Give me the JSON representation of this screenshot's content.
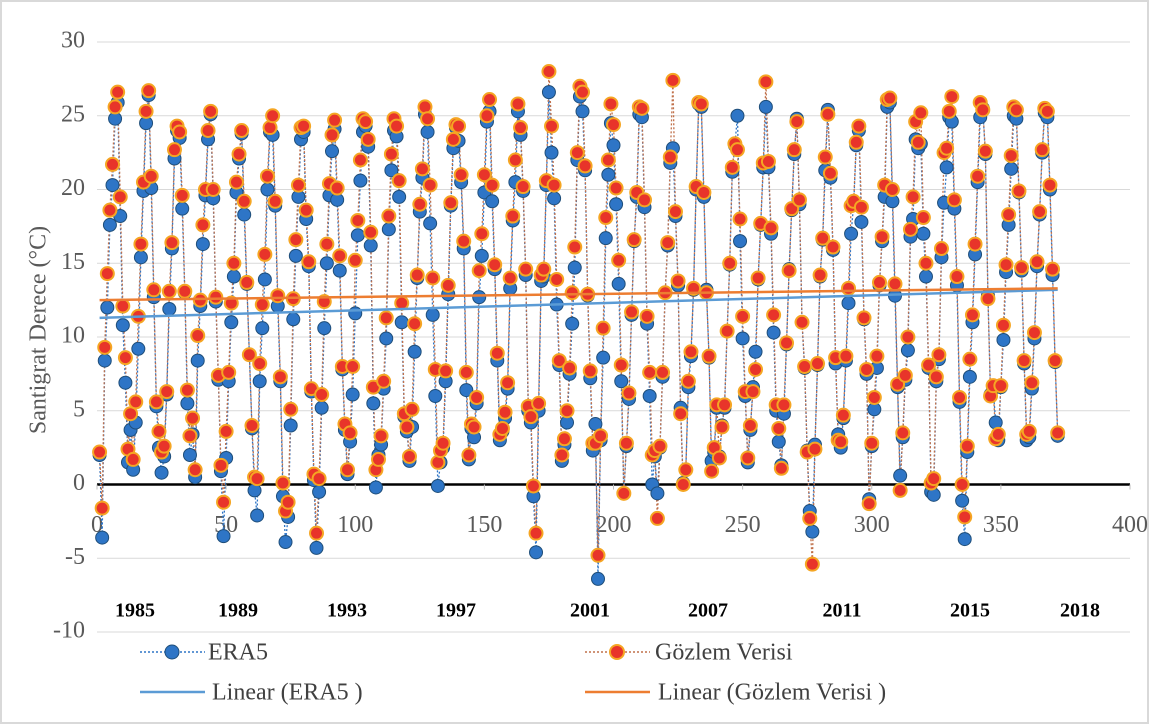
{
  "chart_data": {
    "type": "scatter",
    "y_label": "Santigrat Derece (°C)",
    "xlim": [
      0,
      400
    ],
    "xticks": [
      0,
      50,
      100,
      150,
      200,
      250,
      300,
      350,
      400
    ],
    "ylim": [
      -10,
      30
    ],
    "yticks": [
      -10,
      -5,
      0,
      5,
      10,
      15,
      20,
      25,
      30
    ],
    "grid": true,
    "annotations": [
      "1985",
      "1989",
      "1993",
      "1997",
      "2001",
      "2007",
      "2011",
      "2015",
      "2018"
    ],
    "x": [
      1,
      2,
      3,
      4,
      5,
      6,
      7,
      8,
      9,
      10,
      11,
      12,
      13,
      14,
      15,
      16,
      17,
      18,
      19,
      20,
      21,
      22,
      23,
      24,
      25,
      26,
      27,
      28,
      29,
      30,
      31,
      32,
      33,
      34,
      35,
      36,
      37,
      38,
      39,
      40,
      41,
      42,
      43,
      44,
      45,
      46,
      47,
      48,
      49,
      50,
      51,
      52,
      53,
      54,
      55,
      56,
      57,
      58,
      59,
      60,
      61,
      62,
      63,
      64,
      65,
      66,
      67,
      68,
      69,
      70,
      71,
      72,
      73,
      74,
      75,
      76,
      77,
      78,
      79,
      80,
      81,
      82,
      83,
      84,
      85,
      86,
      87,
      88,
      89,
      90,
      91,
      92,
      93,
      94,
      95,
      96,
      97,
      98,
      99,
      100,
      101,
      102,
      103,
      104,
      105,
      106,
      107,
      108,
      109,
      110,
      111,
      112,
      113,
      114,
      115,
      116,
      117,
      118,
      119,
      120,
      121,
      122,
      123,
      124,
      125,
      126,
      127,
      128,
      129,
      130,
      131,
      132,
      133,
      134,
      135,
      136,
      137,
      138,
      139,
      140,
      141,
      142,
      143,
      144,
      145,
      146,
      147,
      148,
      149,
      150,
      151,
      152,
      153,
      154,
      155,
      156,
      157,
      158,
      159,
      160,
      161,
      162,
      163,
      164,
      165,
      166,
      167,
      168,
      169,
      170,
      171,
      172,
      173,
      174,
      175,
      176,
      177,
      178,
      179,
      180,
      181,
      182,
      183,
      184,
      185,
      186,
      187,
      188,
      189,
      190,
      191,
      192,
      193,
      194,
      195,
      196,
      197,
      198,
      199,
      200,
      201,
      202,
      203,
      204,
      205,
      206,
      207,
      208,
      209,
      210,
      211,
      212,
      213,
      214,
      215,
      216,
      217,
      218,
      219,
      220,
      221,
      222,
      223,
      224,
      225,
      226,
      227,
      228,
      229,
      230,
      231,
      232,
      233,
      234,
      235,
      236,
      237,
      238,
      239,
      240,
      241,
      242,
      243,
      244,
      245,
      246,
      247,
      248,
      249,
      250,
      251,
      252,
      253,
      254,
      255,
      256,
      257,
      258,
      259,
      260,
      261,
      262,
      263,
      264,
      265,
      266,
      267,
      268,
      269,
      270,
      271,
      272,
      273,
      274,
      275,
      276,
      277,
      278,
      279,
      280,
      281,
      282,
      283,
      284,
      285,
      286,
      287,
      288,
      289,
      290,
      291,
      292,
      293,
      294,
      295,
      296,
      297,
      298,
      299,
      300,
      301,
      302,
      303,
      304,
      305,
      306,
      307,
      308,
      309,
      310,
      311,
      312,
      313,
      314,
      315,
      316,
      317,
      318,
      319,
      320,
      321,
      322,
      323,
      324,
      325,
      326,
      327,
      328,
      329,
      330,
      331,
      332,
      333,
      334,
      335,
      336,
      337,
      338,
      339,
      340,
      341,
      342,
      343,
      344,
      345,
      346,
      347,
      348,
      349,
      350,
      351,
      352,
      353,
      354,
      355,
      356,
      357,
      358,
      359,
      360,
      361,
      362,
      363,
      364,
      365,
      366,
      367,
      368,
      369,
      370,
      371,
      372
    ],
    "series": [
      {
        "name": "ERA5",
        "color": "#2e75c6",
        "values": [
          2.0,
          -3.6,
          8.4,
          12.0,
          17.6,
          20.3,
          24.8,
          25.9,
          18.2,
          10.8,
          6.9,
          1.5,
          3.7,
          1.0,
          4.2,
          9.2,
          15.4,
          19.9,
          24.5,
          26.4,
          20.1,
          12.7,
          5.3,
          2.5,
          0.8,
          1.9,
          6.1,
          11.9,
          16.0,
          22.1,
          24.0,
          23.5,
          18.7,
          13.0,
          5.5,
          2.0,
          3.4,
          0.5,
          8.4,
          12.1,
          16.3,
          19.6,
          23.4,
          25.1,
          19.4,
          12.4,
          7.1,
          0.9,
          -3.5,
          1.8,
          7.0,
          11.0,
          14.1,
          19.8,
          22.1,
          23.8,
          18.3,
          13.6,
          8.8,
          3.8,
          -0.4,
          -2.1,
          7.0,
          10.6,
          13.9,
          20.0,
          23.9,
          23.7,
          18.9,
          12.1,
          7.0,
          -0.8,
          -3.9,
          -2.2,
          4.0,
          11.2,
          15.5,
          19.5,
          23.4,
          23.9,
          18.0,
          14.8,
          6.3,
          0.3,
          -4.3,
          -0.5,
          5.2,
          10.6,
          15.0,
          19.6,
          22.6,
          24.1,
          19.3,
          14.5,
          7.8,
          3.7,
          0.7,
          2.9,
          6.1,
          11.6,
          16.9,
          20.6,
          23.9,
          24.3,
          22.9,
          16.2,
          5.5,
          -0.2,
          2.0,
          2.7,
          6.5,
          9.9,
          17.3,
          21.3,
          24.0,
          23.6,
          19.5,
          11.0,
          4.6,
          3.6,
          1.6,
          3.9,
          9.0,
          14.0,
          18.5,
          20.8,
          25.1,
          23.9,
          17.7,
          11.5,
          6.0,
          -0.1,
          1.5,
          2.5,
          7.0,
          12.9,
          18.9,
          22.8,
          24.2,
          23.3,
          20.5,
          16.0,
          6.4,
          1.7,
          3.8,
          3.2,
          5.5,
          12.7,
          15.5,
          19.8,
          24.6,
          25.3,
          19.2,
          14.6,
          8.4,
          3.0,
          3.6,
          4.5,
          6.5,
          13.3,
          17.9,
          20.5,
          25.3,
          23.7,
          19.9,
          14.2,
          5.0,
          4.2,
          -0.8,
          -4.6,
          5.0,
          13.8,
          14.1,
          20.3,
          26.6,
          22.5,
          19.4,
          12.2,
          8.1,
          1.6,
          2.7,
          4.2,
          7.5,
          10.9,
          14.7,
          22.0,
          26.3,
          25.3,
          21.3,
          12.8,
          7.2,
          2.3,
          4.1,
          -6.4,
          3.0,
          8.6,
          16.7,
          21.0,
          24.5,
          23.0,
          19.0,
          13.6,
          7.0,
          -0.6,
          2.6,
          5.8,
          11.5,
          16.5,
          19.5,
          25.1,
          24.9,
          18.8,
          10.9,
          6.0,
          0.0,
          1.9,
          -0.6,
          2.5,
          7.3,
          13.0,
          16.2,
          21.8,
          22.8,
          18.2,
          13.5,
          5.2,
          0.1,
          1.0,
          6.6,
          8.7,
          13.2,
          20.0,
          25.8,
          25.6,
          19.5,
          13.2,
          8.6,
          1.6,
          2.2,
          5.2,
          1.9,
          4.0,
          5.2,
          10.4,
          14.9,
          21.2,
          23.0,
          25.0,
          16.5,
          9.9,
          6.0,
          1.5,
          3.7,
          6.6,
          9.0,
          13.9,
          17.6,
          21.5,
          25.6,
          21.5,
          17.0,
          10.3,
          5.0,
          2.9,
          1.3,
          4.8,
          9.5,
          14.6,
          18.6,
          22.4,
          24.8,
          19.0,
          11.0,
          7.9,
          2.3,
          -1.8,
          -3.2,
          2.7,
          8.1,
          14.1,
          16.6,
          21.3,
          25.4,
          20.8,
          15.9,
          8.2,
          3.4,
          2.5,
          4.5,
          8.4,
          12.3,
          17.0,
          19.0,
          23.0,
          24.0,
          17.8,
          11.2,
          7.5,
          -1.0,
          2.6,
          5.1,
          7.9,
          13.5,
          16.5,
          19.5,
          25.6,
          25.9,
          19.2,
          12.8,
          6.6,
          0.6,
          3.2,
          7.1,
          9.1,
          16.8,
          18.0,
          23.4,
          22.8,
          23.1,
          17.0,
          14.1,
          7.9,
          -0.5,
          -0.7,
          7.0,
          8.5,
          15.4,
          19.1,
          21.5,
          24.9,
          24.6,
          18.7,
          13.5,
          5.6,
          -1.1,
          -3.7,
          2.2,
          7.3,
          11.0,
          15.6,
          20.5,
          24.9,
          25.5,
          22.4,
          12.8,
          6.1,
          6.5,
          4.2,
          3.0,
          6.6,
          9.8,
          14.4,
          17.6,
          21.4,
          25.0,
          24.8,
          19.8,
          14.5,
          8.2,
          3.0,
          3.2,
          6.5,
          9.9,
          14.8,
          18.3,
          22.5,
          25.2,
          24.9,
          20.0,
          14.2,
          8.3,
          3.3
        ]
      },
      {
        "name": "Gözlem Verisi",
        "color": "#e8342a",
        "values": [
          2.2,
          -1.6,
          9.3,
          14.3,
          18.6,
          21.7,
          25.6,
          26.6,
          19.5,
          12.1,
          8.6,
          2.4,
          4.8,
          1.7,
          5.6,
          11.4,
          16.3,
          20.5,
          25.3,
          26.7,
          20.9,
          13.2,
          5.6,
          3.6,
          2.2,
          2.6,
          6.3,
          13.1,
          16.4,
          22.7,
          24.3,
          23.9,
          19.6,
          13.1,
          6.4,
          3.3,
          4.5,
          1.0,
          10.1,
          12.5,
          17.6,
          20.0,
          24.0,
          25.3,
          20.0,
          12.7,
          7.4,
          1.3,
          -1.2,
          3.6,
          7.6,
          12.3,
          15.0,
          20.5,
          22.4,
          24.0,
          19.2,
          13.7,
          8.8,
          4.0,
          0.5,
          0.4,
          8.2,
          12.2,
          15.6,
          20.9,
          24.2,
          25.0,
          19.2,
          12.8,
          7.3,
          0.1,
          -1.8,
          -1.2,
          5.1,
          12.6,
          16.6,
          20.3,
          24.2,
          24.3,
          18.6,
          15.1,
          6.5,
          0.7,
          -3.3,
          0.4,
          6.1,
          12.4,
          16.3,
          20.4,
          23.7,
          24.7,
          20.1,
          15.5,
          8.0,
          4.1,
          1.0,
          3.5,
          8.0,
          15.2,
          17.9,
          22.0,
          24.8,
          24.6,
          23.4,
          17.1,
          6.6,
          1.0,
          1.7,
          3.3,
          7.0,
          11.3,
          18.2,
          22.4,
          24.8,
          24.3,
          20.6,
          12.3,
          4.8,
          3.9,
          1.9,
          5.1,
          10.9,
          14.2,
          19.0,
          21.4,
          25.6,
          24.8,
          20.3,
          14.0,
          7.8,
          1.5,
          2.3,
          2.8,
          7.7,
          13.5,
          19.1,
          23.4,
          24.4,
          24.3,
          21.0,
          16.5,
          7.6,
          2.0,
          4.1,
          3.9,
          5.9,
          14.5,
          17.0,
          21.0,
          25.0,
          26.1,
          20.3,
          14.9,
          8.9,
          3.4,
          3.8,
          4.9,
          6.9,
          14.0,
          18.2,
          22.0,
          25.8,
          24.2,
          20.2,
          14.6,
          5.3,
          4.6,
          -0.1,
          -3.3,
          5.5,
          14.2,
          14.6,
          20.6,
          28.0,
          24.3,
          20.3,
          13.9,
          8.4,
          2.0,
          3.1,
          5.0,
          7.9,
          13.0,
          16.1,
          22.5,
          27.0,
          26.6,
          21.6,
          12.9,
          7.7,
          2.8,
          2.8,
          -4.8,
          3.3,
          10.6,
          18.1,
          22.0,
          25.8,
          24.4,
          20.1,
          15.2,
          8.1,
          -0.6,
          2.8,
          6.2,
          11.7,
          16.6,
          19.8,
          25.6,
          25.5,
          19.3,
          11.4,
          7.6,
          2.0,
          2.3,
          -2.3,
          2.6,
          7.6,
          13.0,
          16.4,
          22.2,
          27.4,
          18.5,
          13.8,
          4.8,
          0.0,
          1.0,
          7.0,
          9.0,
          13.3,
          20.2,
          25.9,
          25.8,
          19.8,
          13.0,
          8.7,
          0.9,
          2.5,
          5.4,
          1.8,
          3.9,
          5.4,
          10.4,
          15.0,
          21.5,
          23.1,
          22.7,
          18.0,
          11.4,
          6.3,
          1.8,
          4.0,
          6.3,
          7.8,
          14.0,
          17.7,
          21.8,
          27.3,
          21.9,
          17.4,
          11.5,
          5.4,
          3.8,
          1.1,
          5.4,
          9.6,
          14.5,
          18.7,
          22.7,
          24.6,
          19.3,
          11.0,
          8.0,
          2.2,
          -2.3,
          -5.4,
          2.4,
          8.2,
          14.2,
          16.7,
          22.2,
          25.1,
          21.1,
          16.1,
          8.6,
          3.0,
          2.9,
          4.7,
          8.7,
          13.3,
          18.9,
          19.2,
          23.2,
          24.3,
          18.8,
          11.3,
          7.8,
          -1.3,
          2.8,
          5.9,
          8.7,
          13.7,
          16.8,
          20.3,
          26.1,
          26.2,
          20.0,
          13.6,
          6.8,
          -0.4,
          3.5,
          7.4,
          10.0,
          17.3,
          19.5,
          24.6,
          23.2,
          25.2,
          18.1,
          15.0,
          8.1,
          0.1,
          0.4,
          7.3,
          8.8,
          16.0,
          22.5,
          22.8,
          25.3,
          26.3,
          19.3,
          14.1,
          5.9,
          0.0,
          -2.2,
          2.6,
          8.5,
          11.5,
          16.3,
          20.9,
          25.9,
          25.4,
          22.6,
          12.6,
          6.0,
          6.7,
          3.1,
          3.4,
          6.7,
          10.8,
          14.9,
          18.3,
          22.3,
          25.6,
          25.4,
          19.9,
          14.7,
          8.4,
          3.4,
          3.6,
          6.9,
          10.3,
          15.1,
          18.5,
          22.7,
          25.5,
          25.3,
          20.3,
          14.6,
          8.4,
          3.5
        ]
      }
    ],
    "trendlines": [
      {
        "name": "Linear (ERA5 )",
        "color": "#5b9bd5",
        "x": [
          1,
          372
        ],
        "values": [
          11.3,
          13.2
        ]
      },
      {
        "name": "Linear (Gözlem Verisi )",
        "color": "#ed7d31",
        "x": [
          1,
          372
        ],
        "values": [
          12.5,
          13.3
        ]
      }
    ]
  }
}
